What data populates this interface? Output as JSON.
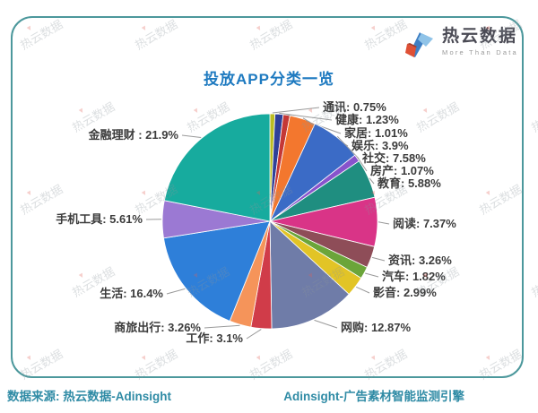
{
  "logo": {
    "name": "热云数据",
    "tagline": "More Than Data"
  },
  "title": "投放APP分类一览",
  "footer": {
    "source": "数据来源: 热云数据-Adinsight",
    "engine": "Adinsight-广告素材智能监测引擎"
  },
  "watermark": {
    "text": "热云数据"
  },
  "colors": {
    "title": "#1e7ac0",
    "frame": "#4c989c",
    "footer": "#2f8ba5",
    "label": "#3c3c3c",
    "leader": "#9a9a9a",
    "logo_blue": "#3f7fc4",
    "logo_lightblue": "#8fc3e8",
    "logo_red": "#df5035",
    "logo_red_dark": "#a93b26"
  },
  "chart_data": {
    "type": "pie",
    "title": "投放APP分类一览",
    "unit": "%",
    "start_angle_deg": 0,
    "direction": "clockwise",
    "legend": "none",
    "label_format": "name: value%",
    "slices": [
      {
        "label": "通讯",
        "value": 0.75,
        "display": "通讯: 0.75%",
        "color": "#bcbd22"
      },
      {
        "label": "健康",
        "value": 1.23,
        "display": "健康: 1.23%",
        "color": "#2f4099"
      },
      {
        "label": "家居",
        "value": 1.01,
        "display": "家居: 1.01%",
        "color": "#c43836"
      },
      {
        "label": "娱乐",
        "value": 3.9,
        "display": "娱乐: 3.9%",
        "color": "#f3772e"
      },
      {
        "label": "社交",
        "value": 7.58,
        "display": "社交: 7.58%",
        "color": "#3b6bc6"
      },
      {
        "label": "房产",
        "value": 1.07,
        "display": "房产: 1.07%",
        "color": "#8853cc"
      },
      {
        "label": "教育",
        "value": 5.88,
        "display": "教育: 5.88%",
        "color": "#1f8e80"
      },
      {
        "label": "阅读",
        "value": 7.37,
        "display": "阅读: 7.37%",
        "color": "#d93487"
      },
      {
        "label": "资讯",
        "value": 3.26,
        "display": "资讯: 3.26%",
        "color": "#8e4d58"
      },
      {
        "label": "汽车",
        "value": 1.82,
        "display": "汽车: 1.82%",
        "color": "#6ba53a"
      },
      {
        "label": "影音",
        "value": 2.99,
        "display": "影音: 2.99%",
        "color": "#e2c426"
      },
      {
        "label": "网购",
        "value": 12.87,
        "display": "网购: 12.87%",
        "color": "#6f7ca8"
      },
      {
        "label": "工作",
        "value": 3.1,
        "display": "工作: 3.1%",
        "color": "#d03c49"
      },
      {
        "label": "商旅出行",
        "value": 3.26,
        "display": "商旅出行: 3.26%",
        "color": "#f5945a"
      },
      {
        "label": "生活",
        "value": 16.4,
        "display": "生活: 16.4%",
        "color": "#2e7fd9"
      },
      {
        "label": "手机工具",
        "value": 5.61,
        "display": "手机工具: 5.61%",
        "color": "#9b79d3"
      },
      {
        "label": "金融理财",
        "value": 21.9,
        "display": "金融理财 : 21.9%",
        "color": "#17ab9e"
      }
    ]
  }
}
